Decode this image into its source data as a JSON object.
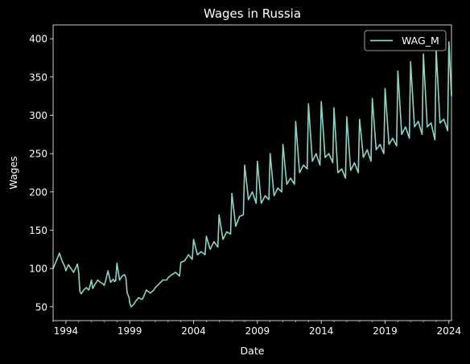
{
  "chart_data": {
    "type": "line",
    "title": "Wages in Russia",
    "xlabel": "Date",
    "ylabel": "Wages",
    "xlim": [
      1993.0,
      2024.2
    ],
    "ylim": [
      32,
      418
    ],
    "x_ticks": [
      1994,
      1999,
      2004,
      2009,
      2014,
      2019,
      2024
    ],
    "y_ticks": [
      50,
      100,
      150,
      200,
      250,
      300,
      350,
      400
    ],
    "grid": false,
    "legend": {
      "placement": "top-right",
      "entries": [
        "WAG_M"
      ]
    },
    "colors": {
      "background": "#000000",
      "foreground": "#ffffff",
      "series": "#8dd3c7"
    },
    "series": [
      {
        "name": "WAG_M",
        "x": [
          1993.0,
          1993.3,
          1993.5,
          1993.7,
          1993.9,
          1994.0,
          1994.2,
          1994.4,
          1994.6,
          1994.8,
          1994.9,
          1995.0,
          1995.1,
          1995.2,
          1995.4,
          1995.6,
          1995.8,
          1995.9,
          1996.0,
          1996.1,
          1996.3,
          1996.5,
          1996.7,
          1996.9,
          1997.0,
          1997.1,
          1997.3,
          1997.5,
          1997.7,
          1997.8,
          1997.9,
          1998.0,
          1998.2,
          1998.4,
          1998.6,
          1998.7,
          1998.8,
          1998.95,
          1999.0,
          1999.1,
          1999.3,
          1999.5,
          1999.7,
          1999.9,
          2000.0,
          2000.3,
          2000.6,
          2000.9,
          2001.0,
          2001.3,
          2001.6,
          2001.9,
          2002.0,
          2002.3,
          2002.6,
          2002.9,
          2003.0,
          2003.3,
          2003.6,
          2003.9,
          2004.0,
          2004.3,
          2004.6,
          2004.9,
          2005.0,
          2005.3,
          2005.6,
          2005.9,
          2006.0,
          2006.3,
          2006.6,
          2006.9,
          2007.0,
          2007.3,
          2007.6,
          2007.9,
          2008.0,
          2008.3,
          2008.6,
          2008.9,
          2009.0,
          2009.3,
          2009.6,
          2009.9,
          2010.0,
          2010.3,
          2010.6,
          2010.9,
          2011.0,
          2011.3,
          2011.6,
          2011.9,
          2012.0,
          2012.3,
          2012.6,
          2012.9,
          2013.0,
          2013.3,
          2013.6,
          2013.9,
          2014.0,
          2014.3,
          2014.6,
          2014.9,
          2015.0,
          2015.3,
          2015.6,
          2015.9,
          2016.0,
          2016.3,
          2016.6,
          2016.9,
          2017.0,
          2017.3,
          2017.6,
          2017.9,
          2018.0,
          2018.3,
          2018.6,
          2018.9,
          2019.0,
          2019.3,
          2019.6,
          2019.9,
          2020.0,
          2020.3,
          2020.6,
          2020.9,
          2021.0,
          2021.3,
          2021.6,
          2021.9,
          2022.0,
          2022.3,
          2022.6,
          2022.9,
          2023.0,
          2023.3,
          2023.6,
          2023.9,
          2024.0,
          2024.2
        ],
        "y": [
          100,
          112,
          120,
          110,
          103,
          97,
          105,
          100,
          95,
          102,
          106,
          96,
          70,
          67,
          72,
          75,
          72,
          78,
          85,
          74,
          80,
          85,
          82,
          80,
          78,
          83,
          97,
          82,
          86,
          83,
          84,
          107,
          85,
          90,
          92,
          88,
          68,
          62,
          55,
          50,
          53,
          58,
          62,
          60,
          60,
          72,
          68,
          72,
          75,
          80,
          85,
          85,
          88,
          92,
          95,
          90,
          108,
          110,
          118,
          112,
          138,
          118,
          122,
          118,
          142,
          125,
          135,
          128,
          170,
          138,
          148,
          145,
          198,
          155,
          168,
          170,
          235,
          190,
          200,
          185,
          240,
          185,
          195,
          190,
          250,
          195,
          205,
          200,
          262,
          210,
          218,
          210,
          292,
          225,
          235,
          230,
          315,
          240,
          250,
          235,
          318,
          245,
          250,
          238,
          310,
          225,
          230,
          218,
          298,
          228,
          238,
          225,
          295,
          245,
          255,
          240,
          322,
          255,
          262,
          250,
          335,
          262,
          270,
          260,
          358,
          275,
          285,
          270,
          370,
          285,
          292,
          275,
          380,
          285,
          290,
          268,
          385,
          290,
          295,
          280,
          396,
          325
        ]
      }
    ]
  }
}
